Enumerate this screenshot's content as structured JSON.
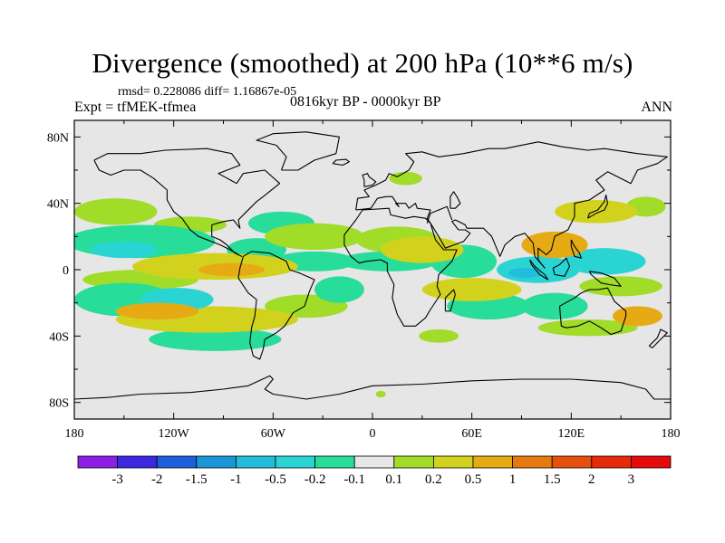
{
  "chart_data": {
    "type": "contour-map",
    "title": "Divergence (smoothed) at 200 hPa (10**6 m/s)",
    "stats": "rmsd= 0.228086 diff= 1.16867e-05",
    "experiment": "Expt = tfMEK-tfmea",
    "period": "0816kyr BP - 0000kyr BP",
    "season": "ANN",
    "x_ticks": [
      "180",
      "120W",
      "60W",
      "0",
      "60E",
      "120E",
      "180"
    ],
    "x_range": [
      -180,
      180
    ],
    "y_ticks": [
      "80N",
      "40N",
      "0",
      "40S",
      "80S"
    ],
    "y_range": [
      -90,
      90
    ],
    "colorbar": {
      "labels": [
        "-3",
        "-2",
        "-1.5",
        "-1",
        "-0.5",
        "-0.2",
        "-0.1",
        "0.1",
        "0.2",
        "0.5",
        "1",
        "1.5",
        "2",
        "3"
      ],
      "colors": [
        "#8c1ee6",
        "#3c28e0",
        "#1e5fdc",
        "#1a96d8",
        "#22bcdc",
        "#2ad4d2",
        "#28dc9a",
        "#e6e6e6",
        "#a0dc28",
        "#d2d21e",
        "#e6aa14",
        "#e67a10",
        "#e6500e",
        "#e62a0a",
        "#e60a0a"
      ]
    },
    "regions": [
      {
        "value": 0.15,
        "lon": 165,
        "lat": 38,
        "rx": 12,
        "ry": 6
      },
      {
        "value": 0.15,
        "lon": -155,
        "lat": 35,
        "rx": 25,
        "ry": 8
      },
      {
        "value": 0.15,
        "lon": -110,
        "lat": 27,
        "rx": 22,
        "ry": 5
      },
      {
        "value": -0.15,
        "lon": -140,
        "lat": 17,
        "rx": 45,
        "ry": 10
      },
      {
        "value": -0.3,
        "lon": -150,
        "lat": 12,
        "rx": 20,
        "ry": 5
      },
      {
        "value": 0.3,
        "lon": -95,
        "lat": 2,
        "rx": 50,
        "ry": 8
      },
      {
        "value": 0.6,
        "lon": -85,
        "lat": 0,
        "rx": 20,
        "ry": 4
      },
      {
        "value": -0.15,
        "lon": -70,
        "lat": 12,
        "rx": 18,
        "ry": 7
      },
      {
        "value": -0.15,
        "lon": -55,
        "lat": 28,
        "rx": 20,
        "ry": 7
      },
      {
        "value": 0.15,
        "lon": -35,
        "lat": 20,
        "rx": 30,
        "ry": 8
      },
      {
        "value": -0.15,
        "lon": -35,
        "lat": 5,
        "rx": 25,
        "ry": 6
      },
      {
        "value": 0.15,
        "lon": -140,
        "lat": -6,
        "rx": 35,
        "ry": 6
      },
      {
        "value": -0.15,
        "lon": -150,
        "lat": -18,
        "rx": 30,
        "ry": 10
      },
      {
        "value": -0.5,
        "lon": -118,
        "lat": -18,
        "rx": 22,
        "ry": 7
      },
      {
        "value": 0.25,
        "lon": -100,
        "lat": -30,
        "rx": 55,
        "ry": 8
      },
      {
        "value": 0.6,
        "lon": -130,
        "lat": -25,
        "rx": 25,
        "ry": 5
      },
      {
        "value": -0.15,
        "lon": -95,
        "lat": -42,
        "rx": 40,
        "ry": 7
      },
      {
        "value": 0.15,
        "lon": -40,
        "lat": -22,
        "rx": 25,
        "ry": 7
      },
      {
        "value": -0.15,
        "lon": -20,
        "lat": -12,
        "rx": 15,
        "ry": 8
      },
      {
        "value": 0.15,
        "lon": 20,
        "lat": 55,
        "rx": 10,
        "ry": 4
      },
      {
        "value": 0.15,
        "lon": 15,
        "lat": 18,
        "rx": 25,
        "ry": 8
      },
      {
        "value": -0.15,
        "lon": 10,
        "lat": 5,
        "rx": 30,
        "ry": 6
      },
      {
        "value": 0.3,
        "lon": 30,
        "lat": 12,
        "rx": 25,
        "ry": 8
      },
      {
        "value": -0.15,
        "lon": 55,
        "lat": 5,
        "rx": 20,
        "ry": 10
      },
      {
        "value": 0.4,
        "lon": 60,
        "lat": -12,
        "rx": 30,
        "ry": 7
      },
      {
        "value": -0.15,
        "lon": 70,
        "lat": -22,
        "rx": 25,
        "ry": 8
      },
      {
        "value": 0.15,
        "lon": 40,
        "lat": -40,
        "rx": 12,
        "ry": 4
      },
      {
        "value": 0.5,
        "lon": 110,
        "lat": 15,
        "rx": 20,
        "ry": 8
      },
      {
        "value": 0.3,
        "lon": 135,
        "lat": 35,
        "rx": 25,
        "ry": 7
      },
      {
        "value": -0.4,
        "lon": 100,
        "lat": 0,
        "rx": 25,
        "ry": 8
      },
      {
        "value": -0.8,
        "lon": 92,
        "lat": -2,
        "rx": 10,
        "ry": 3
      },
      {
        "value": -0.3,
        "lon": 140,
        "lat": 5,
        "rx": 25,
        "ry": 8
      },
      {
        "value": 0.15,
        "lon": 150,
        "lat": -10,
        "rx": 25,
        "ry": 6
      },
      {
        "value": -0.15,
        "lon": 110,
        "lat": -22,
        "rx": 20,
        "ry": 8
      },
      {
        "value": 0.15,
        "lon": 130,
        "lat": -35,
        "rx": 30,
        "ry": 5
      },
      {
        "value": 0.5,
        "lon": 160,
        "lat": -28,
        "rx": 15,
        "ry": 6
      },
      {
        "value": 0.15,
        "lon": 5,
        "lat": -75,
        "rx": 3,
        "ry": 2
      }
    ]
  }
}
